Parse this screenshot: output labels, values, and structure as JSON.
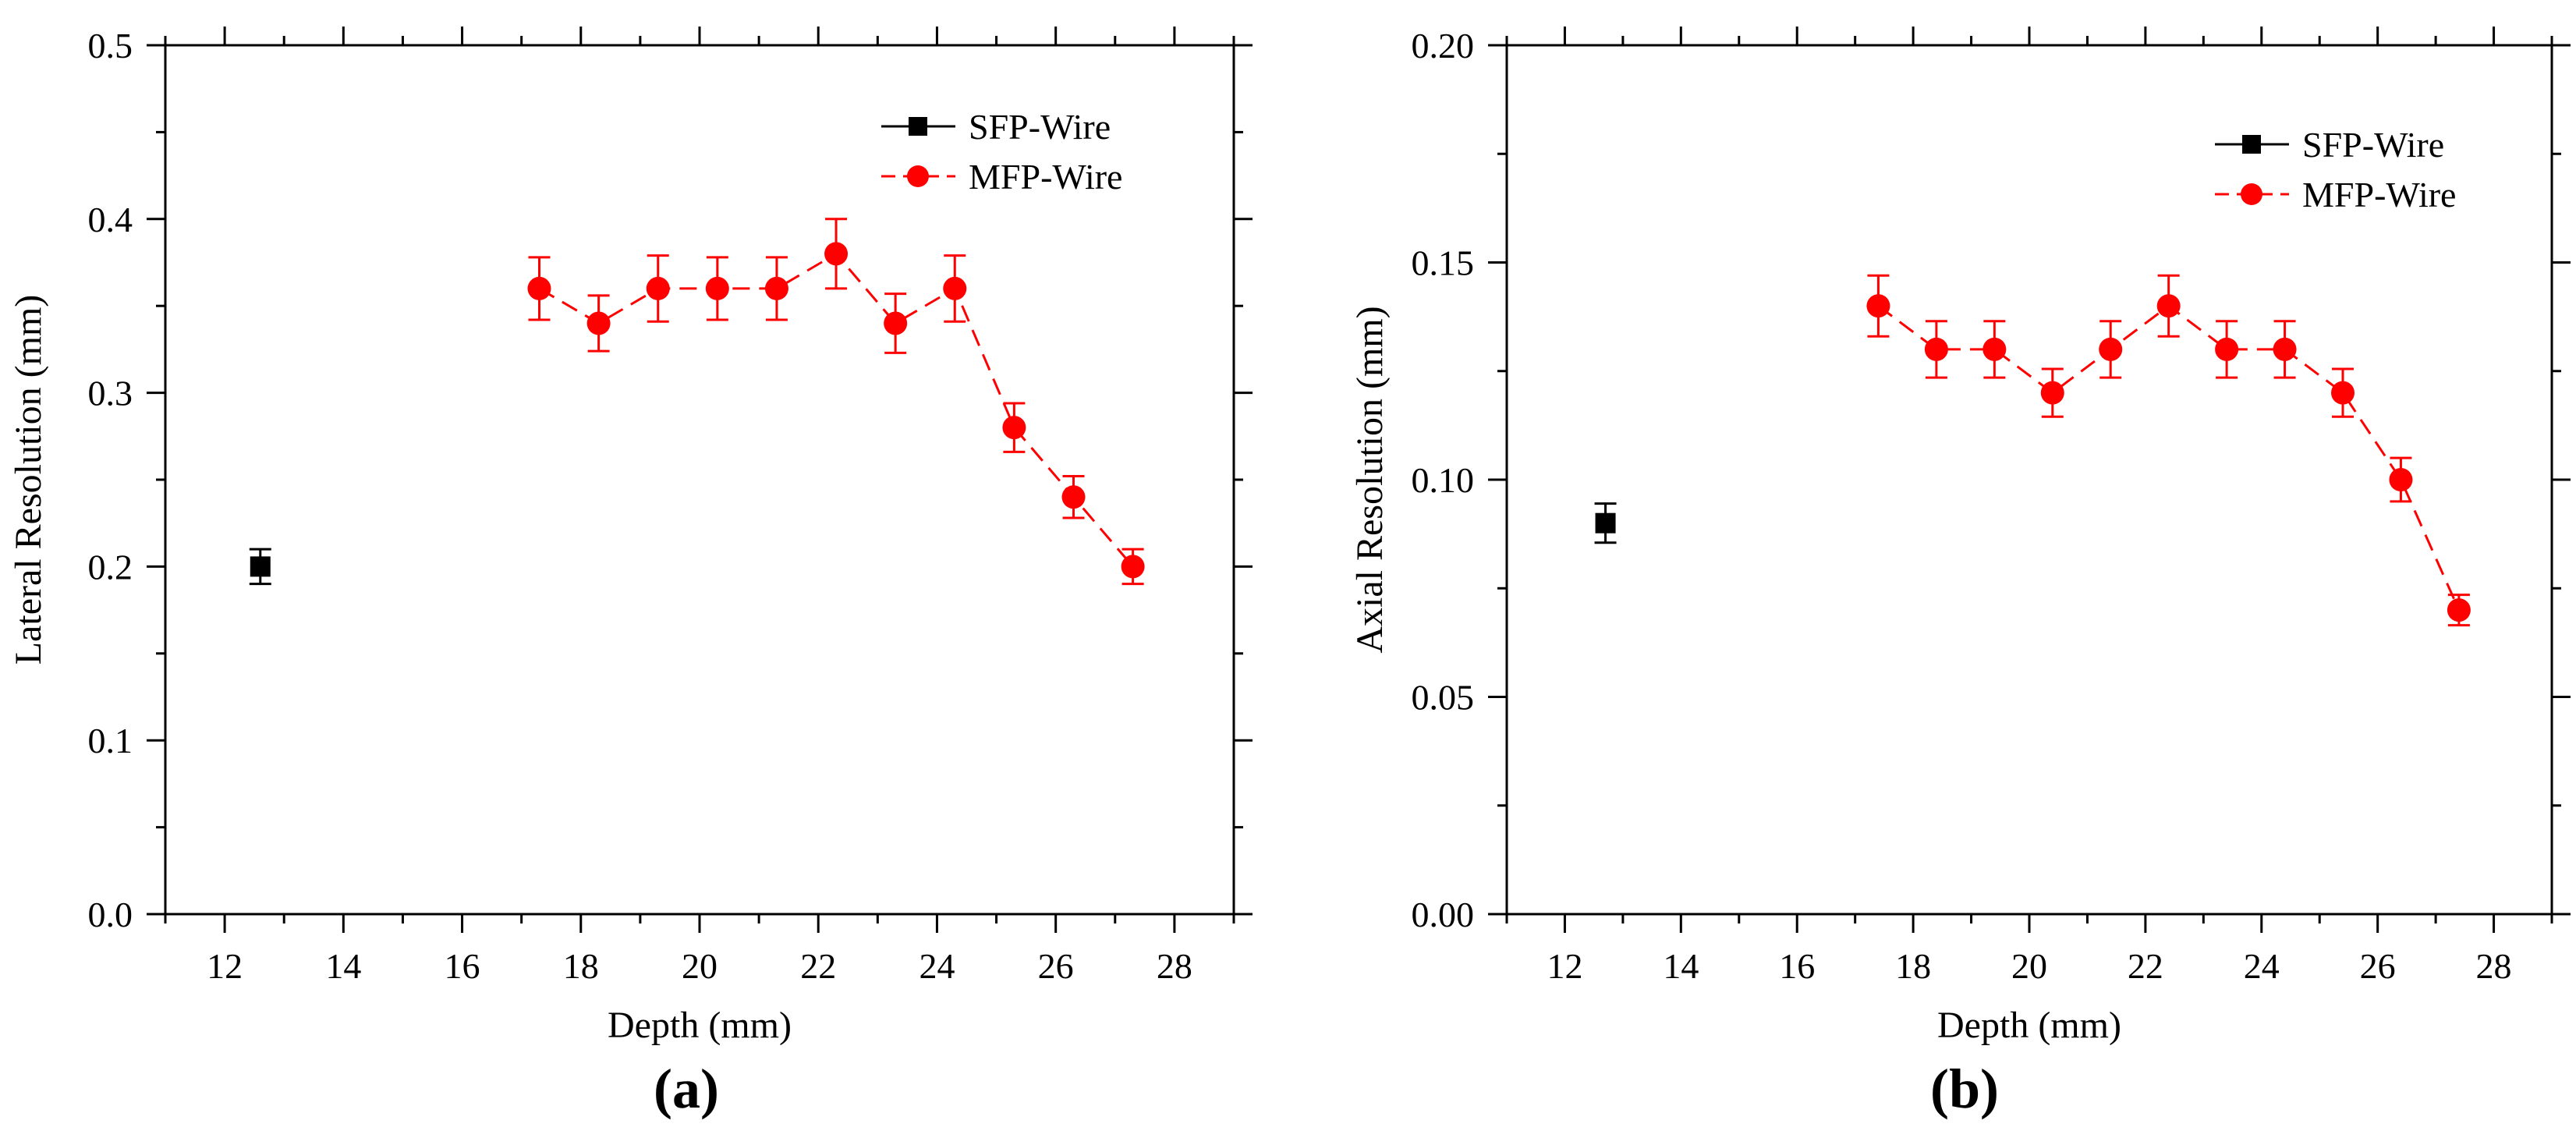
{
  "figure": {
    "panels": [
      {
        "label": "(a)"
      },
      {
        "label": "(b)"
      }
    ]
  },
  "colors": {
    "sfp": "#000000",
    "mfp": "#ff0000"
  },
  "chart_data": [
    {
      "type": "scatter",
      "panel_label": "(a)",
      "xlabel": "Depth (mm)",
      "ylabel": "Lateral Resolution (mm)",
      "xlim": [
        11,
        29
      ],
      "ylim": [
        0.0,
        0.5
      ],
      "xticks": [
        12,
        14,
        16,
        18,
        20,
        22,
        24,
        26,
        28
      ],
      "yticks": [
        "0.0",
        "0.1",
        "0.2",
        "0.3",
        "0.4",
        "0.5"
      ],
      "legend_position": "top-right",
      "grid": false,
      "series": [
        {
          "name": "SFP-Wire",
          "marker": "square",
          "line": "solid",
          "x": [
            12.6
          ],
          "y": [
            0.2
          ],
          "err": [
            0.01
          ]
        },
        {
          "name": "MFP-Wire",
          "marker": "circle",
          "line": "dashed",
          "x": [
            17.3,
            18.3,
            19.3,
            20.3,
            21.3,
            22.3,
            23.3,
            24.3,
            25.3,
            26.3,
            27.3
          ],
          "y": [
            0.36,
            0.34,
            0.36,
            0.36,
            0.36,
            0.38,
            0.34,
            0.36,
            0.28,
            0.24,
            0.2
          ],
          "err": [
            0.018,
            0.016,
            0.019,
            0.018,
            0.018,
            0.02,
            0.017,
            0.019,
            0.014,
            0.012,
            0.01
          ]
        }
      ]
    },
    {
      "type": "scatter",
      "panel_label": "(b)",
      "xlabel": "Depth (mm)",
      "ylabel": "Axial Resolution (mm)",
      "xlim": [
        11,
        29
      ],
      "ylim": [
        0.0,
        0.2
      ],
      "xticks": [
        12,
        14,
        16,
        18,
        20,
        22,
        24,
        26,
        28
      ],
      "yticks": [
        "0.00",
        "0.05",
        "0.10",
        "0.15",
        "0.20"
      ],
      "legend_position": "top-right",
      "grid": false,
      "series": [
        {
          "name": "SFP-Wire",
          "marker": "square",
          "line": "solid",
          "x": [
            12.7
          ],
          "y": [
            0.09
          ],
          "err": [
            0.0045
          ]
        },
        {
          "name": "MFP-Wire",
          "marker": "circle",
          "line": "dashed",
          "x": [
            17.4,
            18.4,
            19.4,
            20.4,
            21.4,
            22.4,
            23.4,
            24.4,
            25.4,
            26.4,
            27.4
          ],
          "y": [
            0.14,
            0.13,
            0.13,
            0.12,
            0.13,
            0.14,
            0.13,
            0.13,
            0.12,
            0.1,
            0.07
          ],
          "err": [
            0.007,
            0.0065,
            0.0065,
            0.0055,
            0.0065,
            0.007,
            0.0065,
            0.0065,
            0.0055,
            0.005,
            0.0035
          ]
        }
      ]
    }
  ]
}
